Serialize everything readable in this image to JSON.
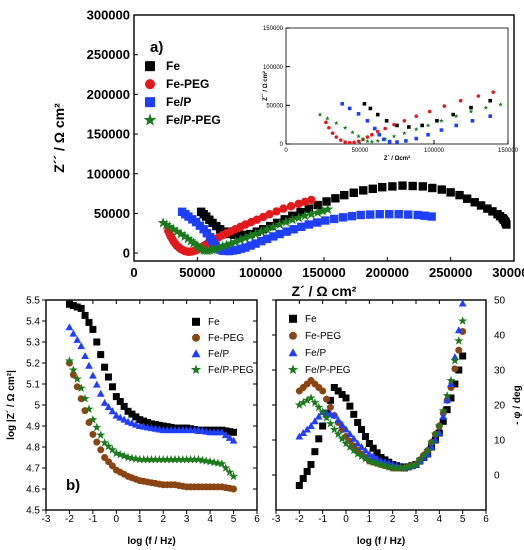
{
  "chart_data": [
    {
      "type": "scatter",
      "panel_label": "a)",
      "xlabel": "Z´ / Ω cm²",
      "ylabel": "Z´´ / Ω cm²",
      "xlim": [
        0,
        300000
      ],
      "ylim": [
        -10000,
        300000
      ],
      "xticks": [
        0,
        50000,
        100000,
        150000,
        200000,
        250000,
        300000
      ],
      "yticks": [
        0,
        50000,
        100000,
        150000,
        200000,
        250000,
        300000
      ],
      "legend_position": "top-left",
      "grid": false,
      "series": [
        {
          "name": "Fe",
          "color": "#000000",
          "marker": "square",
          "x": [
            53000,
            57000,
            62000,
            68000,
            75000,
            83000,
            92000,
            102000,
            113000,
            125000,
            138000,
            152000,
            166000,
            181000,
            196000,
            212000,
            228000,
            243000,
            257000,
            269000,
            279000,
            287000,
            291000,
            293000,
            294000
          ],
          "y": [
            52000,
            46000,
            38000,
            30000,
            24000,
            22000,
            24000,
            30000,
            38000,
            47000,
            56000,
            65000,
            73000,
            79000,
            83000,
            85000,
            84000,
            80000,
            73000,
            64000,
            56000,
            49000,
            44000,
            40000,
            36000
          ]
        },
        {
          "name": "Fe-PEG",
          "color": "#e31a1c",
          "marker": "circle",
          "x": [
            27000,
            29000,
            31500,
            34000,
            37000,
            40000,
            43000,
            46000,
            49000,
            52000,
            55000,
            58000,
            62000,
            67000,
            73000,
            80000,
            88000,
            97000,
            107000,
            118000,
            130000,
            140000
          ],
          "y": [
            28000,
            21000,
            14000,
            9000,
            5000,
            2500,
            1500,
            2000,
            3500,
            6000,
            9000,
            12000,
            16000,
            20000,
            25000,
            30000,
            36000,
            42000,
            49000,
            56000,
            62000,
            67000
          ]
        },
        {
          "name": "Fe/P",
          "color": "#1f3fff",
          "marker": "square",
          "x": [
            38000,
            43000,
            49000,
            55000,
            60000,
            63000,
            66000,
            70000,
            75000,
            81000,
            88000,
            96000,
            105000,
            115000,
            126000,
            138000,
            151000,
            165000,
            179000,
            194000,
            209000,
            224000,
            235000
          ],
          "y": [
            52000,
            46000,
            39000,
            30000,
            20000,
            12000,
            6000,
            3000,
            2500,
            4000,
            7000,
            12000,
            18000,
            24000,
            30000,
            36000,
            41000,
            45000,
            48000,
            49000,
            49000,
            48000,
            46000
          ]
        },
        {
          "name": "Fe/P-PEG",
          "color": "#1b7a1b",
          "marker": "star",
          "x": [
            23000,
            28000,
            34000,
            40000,
            45000,
            49000,
            52000,
            55000,
            58000,
            62000,
            67000,
            73000,
            80000,
            88000,
            96000,
            105000,
            115000,
            125000,
            135000,
            145000,
            153000
          ],
          "y": [
            38000,
            33000,
            27000,
            21000,
            15000,
            10000,
            6000,
            3500,
            3000,
            4000,
            6500,
            10000,
            14000,
            19000,
            24000,
            30000,
            36000,
            42000,
            47000,
            51000,
            55000
          ]
        }
      ]
    },
    {
      "type": "scatter",
      "panel_label": "",
      "inset": true,
      "xlabel": "Z´ / Ωcm²",
      "ylabel": "Z´´ / Ω cm²",
      "xlim": [
        0,
        150000
      ],
      "ylim": [
        0,
        150000
      ],
      "xticks": [
        0,
        50000,
        100000,
        150000
      ],
      "yticks": [
        0,
        50000,
        100000,
        150000
      ],
      "series_ref": "same as panel a, zoomed to 0-150000"
    },
    {
      "type": "line",
      "panel_label": "b)",
      "xlabel": "log (f / Hz)",
      "ylabel": "log |Z´ / Ω cm²|",
      "xlim": [
        -3,
        6
      ],
      "ylim": [
        4.5,
        5.5
      ],
      "xticks": [
        -3,
        -2,
        -1,
        0,
        1,
        2,
        3,
        4,
        5,
        6
      ],
      "yticks": [
        4.5,
        4.6,
        4.7,
        4.8,
        4.9,
        5.0,
        5.1,
        5.2,
        5.3,
        5.4,
        5.5
      ],
      "legend_position": "top-right",
      "series": [
        {
          "name": "Fe",
          "color": "#000000",
          "marker": "square",
          "x": [
            -2.0,
            -1.5,
            -1.0,
            -0.5,
            0.0,
            0.5,
            1.0,
            1.5,
            2.0,
            2.5,
            3.0,
            3.5,
            4.0,
            4.5,
            5.0
          ],
          "y": [
            5.48,
            5.46,
            5.36,
            5.18,
            5.04,
            4.97,
            4.93,
            4.91,
            4.9,
            4.89,
            4.89,
            4.88,
            4.88,
            4.88,
            4.87
          ]
        },
        {
          "name": "Fe-PEG",
          "color": "#8b4513",
          "marker": "circle",
          "x": [
            -2.0,
            -1.5,
            -1.0,
            -0.5,
            0.0,
            0.5,
            1.0,
            1.5,
            2.0,
            2.5,
            3.0,
            3.5,
            4.0,
            4.5,
            5.0
          ],
          "y": [
            5.2,
            5.03,
            4.86,
            4.75,
            4.69,
            4.66,
            4.64,
            4.63,
            4.62,
            4.62,
            4.61,
            4.61,
            4.61,
            4.61,
            4.6
          ]
        },
        {
          "name": "Fe/P",
          "color": "#1f3fff",
          "marker": "triangle",
          "x": [
            -2.0,
            -1.5,
            -1.0,
            -0.5,
            0.0,
            0.5,
            1.0,
            1.5,
            2.0,
            2.5,
            3.0,
            3.5,
            4.0,
            4.5,
            5.0
          ],
          "y": [
            5.37,
            5.28,
            5.14,
            5.01,
            4.95,
            4.92,
            4.9,
            4.89,
            4.88,
            4.88,
            4.88,
            4.88,
            4.87,
            4.87,
            4.83
          ]
        },
        {
          "name": "Fe/P-PEG",
          "color": "#1b7a1b",
          "marker": "star",
          "x": [
            -2.0,
            -1.5,
            -1.0,
            -0.5,
            0.0,
            0.5,
            1.0,
            1.5,
            2.0,
            2.5,
            3.0,
            3.5,
            4.0,
            4.5,
            5.0
          ],
          "y": [
            5.21,
            5.08,
            4.93,
            4.82,
            4.77,
            4.75,
            4.74,
            4.74,
            4.74,
            4.74,
            4.74,
            4.74,
            4.73,
            4.72,
            4.66
          ]
        }
      ]
    },
    {
      "type": "line",
      "panel_label": "",
      "xlabel": "log (f / Hz)",
      "ylabel": "- φ / deg",
      "xlim": [
        -3,
        6
      ],
      "ylim": [
        -10,
        50
      ],
      "xticks": [
        -3,
        -2,
        -1,
        0,
        1,
        2,
        3,
        4,
        5,
        6
      ],
      "yticks": [
        0,
        10,
        20,
        30,
        40,
        50
      ],
      "legend_position": "top-left",
      "series": [
        {
          "name": "Fe",
          "color": "#000000",
          "marker": "square",
          "x": [
            -2.0,
            -1.5,
            -1.0,
            -0.5,
            0.0,
            0.5,
            1.0,
            1.5,
            2.0,
            2.5,
            3.0,
            3.5,
            4.0,
            4.5,
            5.0
          ],
          "y": [
            -3,
            3,
            14,
            25,
            22,
            15,
            9,
            5,
            3,
            2,
            3,
            6,
            12,
            22,
            34
          ]
        },
        {
          "name": "Fe-PEG",
          "color": "#8b4513",
          "marker": "circle",
          "x": [
            -2.0,
            -1.5,
            -1.0,
            -0.5,
            0.0,
            0.5,
            1.0,
            1.5,
            2.0,
            2.5,
            3.0,
            3.5,
            4.0,
            4.5,
            5.0
          ],
          "y": [
            24,
            27,
            24,
            17,
            11,
            7,
            4,
            3,
            2,
            2,
            3,
            7,
            14,
            25,
            41
          ]
        },
        {
          "name": "Fe/P",
          "color": "#1f3fff",
          "marker": "triangle",
          "x": [
            -2.0,
            -1.5,
            -1.0,
            -0.5,
            0.0,
            0.5,
            1.0,
            1.5,
            2.0,
            2.5,
            3.0,
            3.5,
            4.0,
            4.5,
            5.0
          ],
          "y": [
            11,
            14,
            18,
            17,
            13,
            9,
            6,
            4,
            3,
            2,
            3,
            6,
            12,
            26,
            49
          ]
        },
        {
          "name": "Fe/P-PEG",
          "color": "#1b7a1b",
          "marker": "star",
          "x": [
            -2.0,
            -1.5,
            -1.0,
            -0.5,
            0.0,
            0.5,
            1.0,
            1.5,
            2.0,
            2.5,
            3.0,
            3.5,
            4.0,
            4.5,
            5.0
          ],
          "y": [
            20,
            22,
            18,
            13,
            9,
            6,
            4,
            3,
            2,
            2,
            3,
            7,
            14,
            27,
            44
          ]
        }
      ]
    }
  ]
}
